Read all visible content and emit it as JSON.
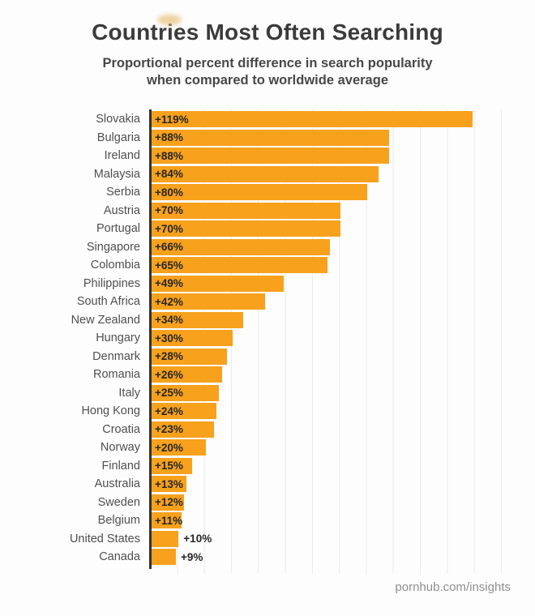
{
  "header": {
    "title": "Countries Most Often Searching",
    "subtitle_line1": "Proportional percent difference in search popularity",
    "subtitle_line2": "when compared to worldwide average"
  },
  "chart_data": {
    "type": "bar",
    "orientation": "horizontal",
    "title": "Countries Most Often Searching",
    "subtitle": "Proportional percent difference in search popularity when compared to worldwide average",
    "xlabel": "",
    "ylabel": "",
    "xlim": [
      0,
      138
    ],
    "grid": true,
    "gridline_interval_percent": 10,
    "legend": false,
    "bar_color": "#F7A11C",
    "categories": [
      "Slovakia",
      "Bulgaria",
      "Ireland",
      "Malaysia",
      "Serbia",
      "Austria",
      "Portugal",
      "Singapore",
      "Colombia",
      "Philippines",
      "South Africa",
      "New Zealand",
      "Hungary",
      "Denmark",
      "Romania",
      "Italy",
      "Hong Kong",
      "Croatia",
      "Norway",
      "Finland",
      "Australia",
      "Sweden",
      "Belgium",
      "United States",
      "Canada"
    ],
    "values": [
      119,
      88,
      88,
      84,
      80,
      70,
      70,
      66,
      65,
      49,
      42,
      34,
      30,
      28,
      26,
      25,
      24,
      23,
      20,
      15,
      13,
      12,
      11,
      10,
      9
    ],
    "value_labels": [
      "+119%",
      "+88%",
      "+88%",
      "+84%",
      "+80%",
      "+70%",
      "+70%",
      "+66%",
      "+65%",
      "+49%",
      "+42%",
      "+34%",
      "+30%",
      "+28%",
      "+26%",
      "+25%",
      "+24%",
      "+23%",
      "+20%",
      "+15%",
      "+13%",
      "+12%",
      "+11%",
      "+10%",
      "+9%"
    ],
    "label_inside_min": 11
  },
  "footer": {
    "source": "pornhub.com/insights"
  }
}
